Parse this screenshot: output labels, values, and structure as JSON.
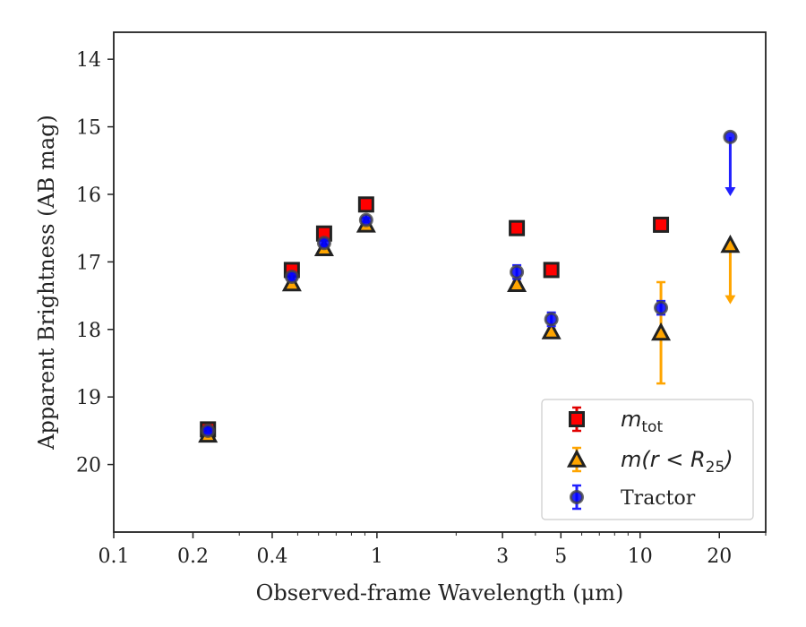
{
  "chart_data": {
    "type": "scatter",
    "title": "",
    "xlabel": "Observed-frame Wavelength (μm)",
    "ylabel": "Apparent Brightness (AB mag)",
    "xscale": "log",
    "xlim": [
      0.1,
      30
    ],
    "ylim": [
      21.0,
      13.6
    ],
    "y_inverted": true,
    "grid": false,
    "legend_position": "bottom-right",
    "xticks": [
      {
        "value": 0.1,
        "label": "0.1"
      },
      {
        "value": 0.2,
        "label": "0.2"
      },
      {
        "value": 0.4,
        "label": "0.4"
      },
      {
        "value": 1,
        "label": "1"
      },
      {
        "value": 3,
        "label": "3"
      },
      {
        "value": 5,
        "label": "5"
      },
      {
        "value": 10,
        "label": "10"
      },
      {
        "value": 20,
        "label": "20"
      }
    ],
    "yticks": [
      {
        "value": 14,
        "label": "14"
      },
      {
        "value": 15,
        "label": "15"
      },
      {
        "value": 16,
        "label": "16"
      },
      {
        "value": 17,
        "label": "17"
      },
      {
        "value": 18,
        "label": "18"
      },
      {
        "value": 19,
        "label": "19"
      },
      {
        "value": 20,
        "label": "20"
      }
    ],
    "series": [
      {
        "name": "m_tot",
        "legend_main": "m",
        "legend_sub": "tot",
        "marker": "square",
        "face_color": "#ff0000",
        "error_color": "#e00000",
        "points": [
          {
            "x": 0.228,
            "y": 19.48,
            "err": 0.03
          },
          {
            "x": 0.475,
            "y": 17.12,
            "err": 0.03
          },
          {
            "x": 0.63,
            "y": 16.58,
            "err": 0.03
          },
          {
            "x": 0.91,
            "y": 16.15,
            "err": 0.03
          },
          {
            "x": 3.4,
            "y": 16.5,
            "err": 0.03
          },
          {
            "x": 4.6,
            "y": 17.12,
            "err": 0.03
          },
          {
            "x": 12.0,
            "y": 16.45,
            "err": 0.03
          }
        ]
      },
      {
        "name": "m(r < R_25)",
        "legend_main": "m(r < R",
        "legend_sub": "25",
        "legend_end": ")",
        "marker": "triangle",
        "face_color": "#ffa500",
        "error_color": "#ffa500",
        "points": [
          {
            "x": 0.228,
            "y": 19.56,
            "err": 0.03
          },
          {
            "x": 0.475,
            "y": 17.32,
            "err": 0.03
          },
          {
            "x": 0.63,
            "y": 16.8,
            "err": 0.03
          },
          {
            "x": 0.91,
            "y": 16.45,
            "err": 0.03
          },
          {
            "x": 3.4,
            "y": 17.33,
            "err": 0.03
          },
          {
            "x": 4.6,
            "y": 18.03,
            "err": 0.03
          },
          {
            "x": 12.0,
            "y": 18.05,
            "err": 0.75
          },
          {
            "x": 22.0,
            "y": 16.75,
            "upper_limit_arrow_to": 17.6
          }
        ]
      },
      {
        "name": "Tractor",
        "legend_main": "Tractor",
        "marker": "circle",
        "face_color": "#0000ff",
        "error_color": "#2020ff",
        "points": [
          {
            "x": 0.228,
            "y": 19.5,
            "err": 0.03
          },
          {
            "x": 0.475,
            "y": 17.22,
            "err": 0.05
          },
          {
            "x": 0.63,
            "y": 16.72,
            "err": 0.05
          },
          {
            "x": 0.91,
            "y": 16.38,
            "err": 0.03
          },
          {
            "x": 3.4,
            "y": 17.15,
            "err": 0.1
          },
          {
            "x": 4.6,
            "y": 17.85,
            "err": 0.1
          },
          {
            "x": 12.0,
            "y": 17.68,
            "err": 0.1
          },
          {
            "x": 22.0,
            "y": 15.15,
            "upper_limit_arrow_to": 16.0
          }
        ]
      }
    ]
  }
}
